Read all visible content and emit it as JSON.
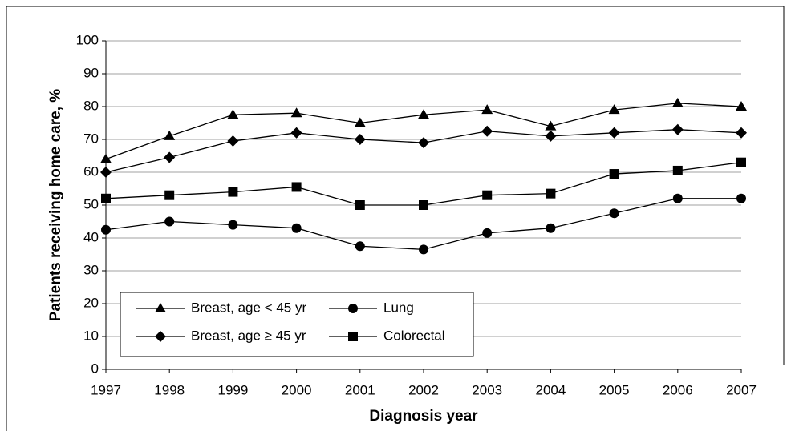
{
  "chart_data": {
    "type": "line",
    "xlabel": "Diagnosis year",
    "ylabel": "Patients receiving home care, %",
    "categories": [
      "1997",
      "1998",
      "1999",
      "2000",
      "2001",
      "2002",
      "2003",
      "2004",
      "2005",
      "2006",
      "2007"
    ],
    "series": [
      {
        "name": "Breast, age < 45 yr",
        "color": "#000000",
        "marker": "triangle",
        "values": [
          64,
          71,
          77.5,
          78,
          75,
          77.5,
          79,
          74,
          79,
          81,
          80
        ]
      },
      {
        "name": "Breast, age ≥ 45 yr",
        "color": "#000000",
        "marker": "diamond",
        "values": [
          60,
          64.5,
          69.5,
          72,
          70,
          69,
          72.5,
          71,
          72,
          73,
          72
        ]
      },
      {
        "name": "Lung",
        "color": "#000000",
        "marker": "circle",
        "values": [
          42.5,
          45,
          44,
          43,
          37.5,
          36.5,
          41.5,
          43,
          47.5,
          52,
          52
        ]
      },
      {
        "name": "Colorectal",
        "color": "#000000",
        "marker": "square",
        "values": [
          52,
          53,
          54,
          55.5,
          50,
          50,
          53,
          53.5,
          59.5,
          60.5,
          63
        ]
      }
    ],
    "ylim": [
      0,
      100
    ],
    "yticks": [
      0,
      10,
      20,
      30,
      40,
      50,
      60,
      70,
      80,
      90,
      100
    ],
    "grid": true,
    "legend": "lower left"
  }
}
